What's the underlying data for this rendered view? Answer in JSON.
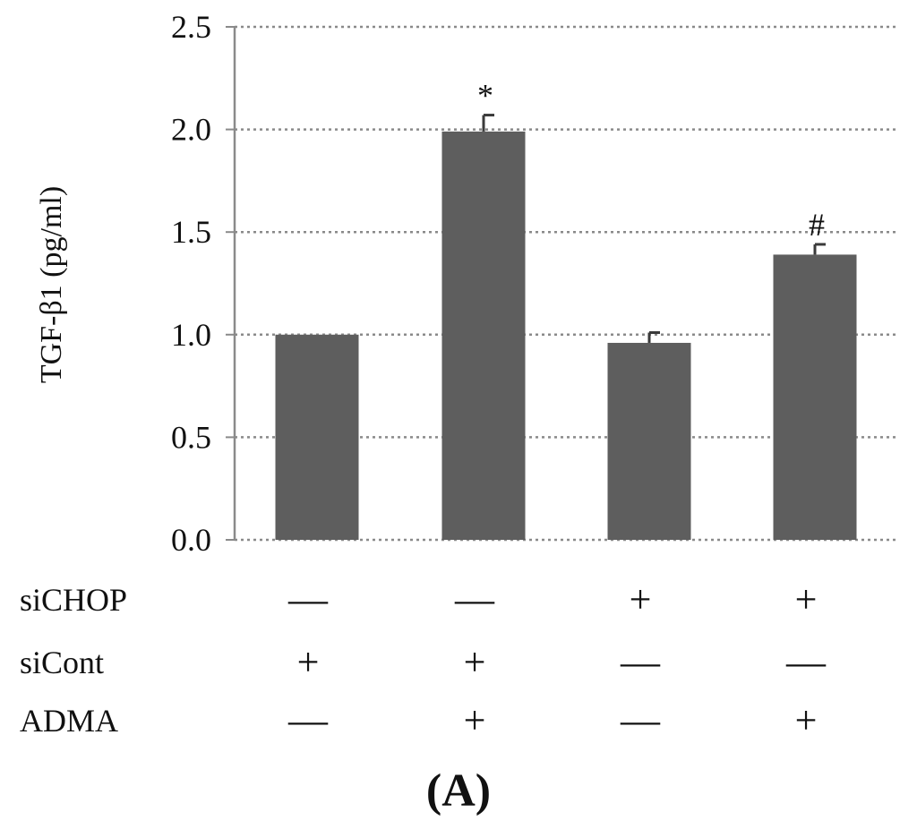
{
  "chart_data": {
    "type": "bar",
    "ylabel": "TGF-β1 (pg/ml)",
    "ylim": [
      0,
      2.5
    ],
    "yticks": [
      "0.0",
      "0.5",
      "1.0",
      "1.5",
      "2.0",
      "2.5"
    ],
    "grid": "dotted horizontal",
    "bar_color": "#5e5e5e",
    "bars": [
      {
        "value": 1.0,
        "error": 0.0,
        "annotation": ""
      },
      {
        "value": 1.99,
        "error": 0.08,
        "annotation": "*"
      },
      {
        "value": 0.96,
        "error": 0.05,
        "annotation": ""
      },
      {
        "value": 1.39,
        "error": 0.05,
        "annotation": "#"
      }
    ],
    "conditions": [
      {
        "label": "siCHOP",
        "values": [
          "—",
          "—",
          "+",
          "+"
        ]
      },
      {
        "label": "siCont",
        "values": [
          "+",
          "+",
          "—",
          "—"
        ]
      },
      {
        "label": "ADMA",
        "values": [
          "—",
          "+",
          "—",
          "+"
        ]
      }
    ],
    "panel_label": "(A)"
  }
}
